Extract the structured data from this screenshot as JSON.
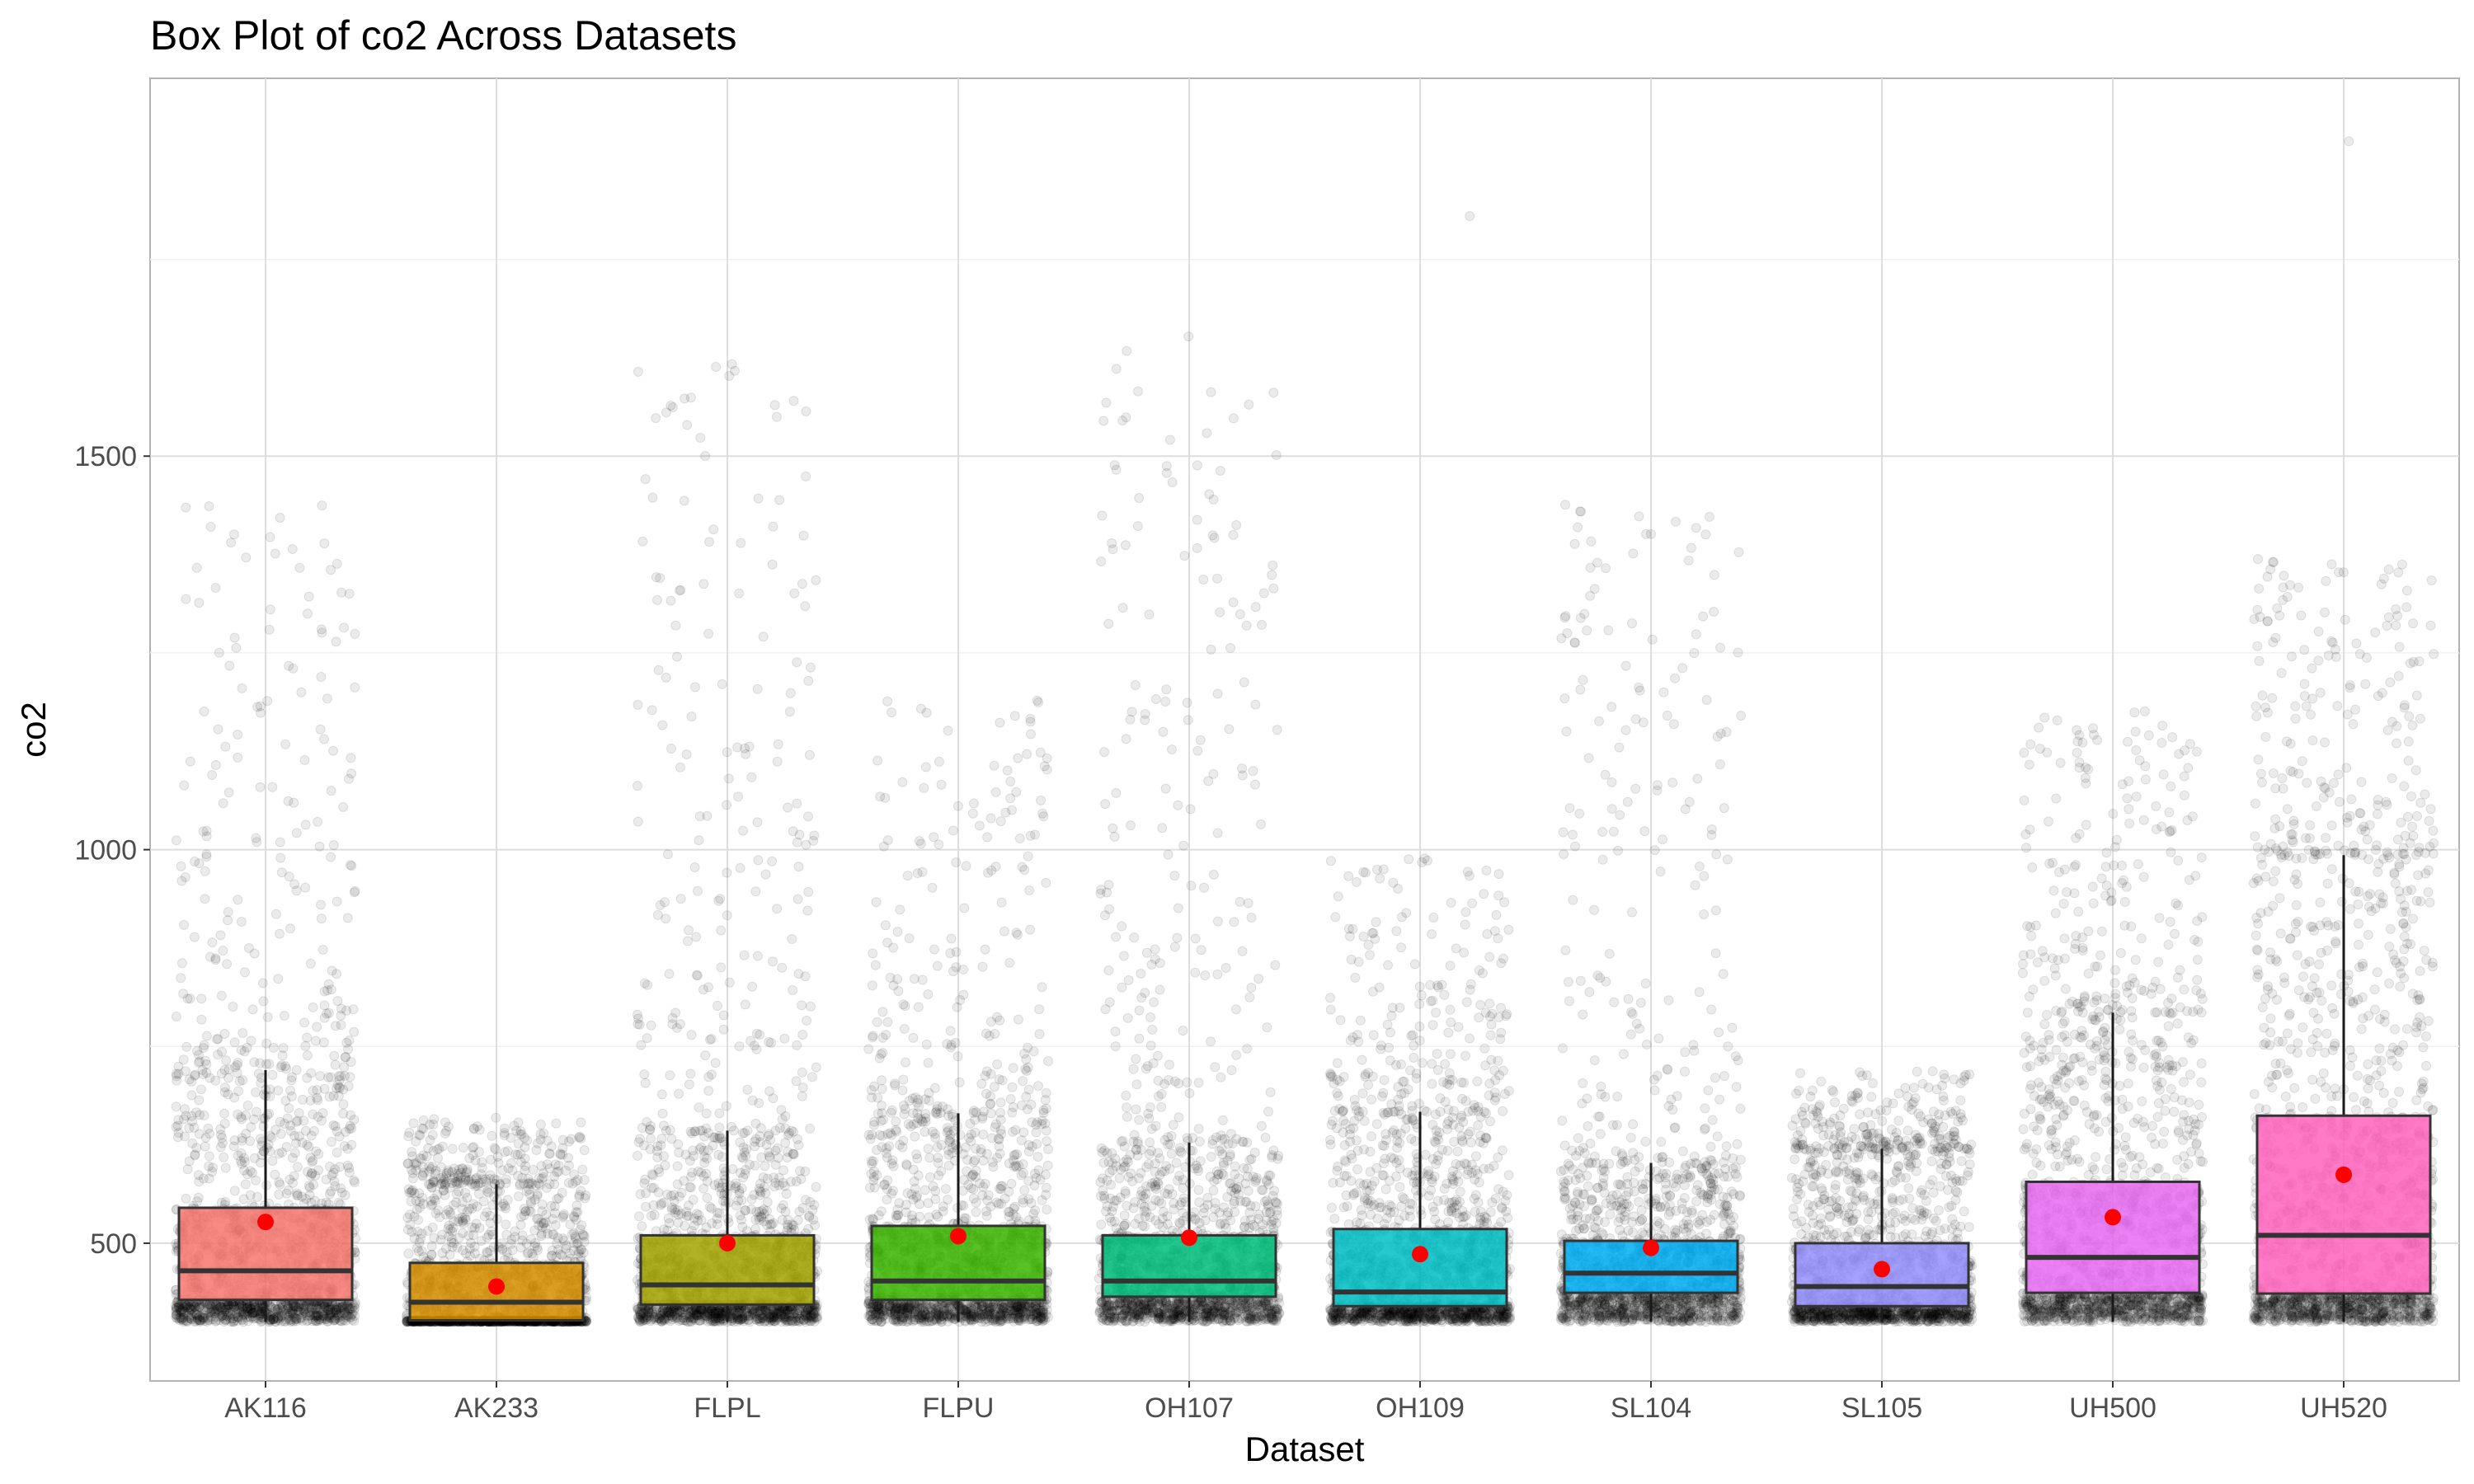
{
  "chart_data": {
    "type": "box",
    "title": "Box Plot of co2 Across Datasets",
    "xlabel": "Dataset",
    "ylabel": "co2",
    "ylim": [
      325,
      1980
    ],
    "yticks": [
      500,
      1000,
      1500
    ],
    "grid": true,
    "legend": "none",
    "categories": [
      "AK116",
      "AK233",
      "FLPL",
      "FLPU",
      "OH107",
      "OH109",
      "SL104",
      "SL105",
      "UH500",
      "UH520"
    ],
    "colors": [
      "#F8766D",
      "#D89000",
      "#A3A500",
      "#39B600",
      "#00BF7D",
      "#00BFC4",
      "#00B0F6",
      "#9590FF",
      "#E76BF3",
      "#FF62BC"
    ],
    "boxes": [
      {
        "name": "AK116",
        "q1": 428,
        "median": 465,
        "q3": 545,
        "whisker_low": 400,
        "whisker_high": 720,
        "mean": 527,
        "points_max": 1440,
        "outliers": []
      },
      {
        "name": "AK233",
        "q1": 402,
        "median": 425,
        "q3": 475,
        "whisker_low": 400,
        "whisker_high": 575,
        "mean": 445,
        "points_max": 660,
        "outliers": []
      },
      {
        "name": "FLPL",
        "q1": 422,
        "median": 447,
        "q3": 510,
        "whisker_low": 400,
        "whisker_high": 643,
        "mean": 500,
        "points_max": 1620,
        "outliers": []
      },
      {
        "name": "FLPU",
        "q1": 428,
        "median": 452,
        "q3": 522,
        "whisker_low": 400,
        "whisker_high": 665,
        "mean": 509,
        "points_max": 1190,
        "outliers": []
      },
      {
        "name": "OH107",
        "q1": 432,
        "median": 452,
        "q3": 510,
        "whisker_low": 400,
        "whisker_high": 628,
        "mean": 507,
        "points_max": 1660,
        "outliers": []
      },
      {
        "name": "OH109",
        "q1": 420,
        "median": 438,
        "q3": 518,
        "whisker_low": 400,
        "whisker_high": 667,
        "mean": 486,
        "points_max": 990,
        "outliers": [
          1805
        ]
      },
      {
        "name": "SL104",
        "q1": 437,
        "median": 462,
        "q3": 503,
        "whisker_low": 400,
        "whisker_high": 602,
        "mean": 494,
        "points_max": 1440,
        "outliers": []
      },
      {
        "name": "SL105",
        "q1": 420,
        "median": 445,
        "q3": 500,
        "whisker_low": 400,
        "whisker_high": 620,
        "mean": 467,
        "points_max": 720,
        "outliers": []
      },
      {
        "name": "UH500",
        "q1": 437,
        "median": 482,
        "q3": 578,
        "whisker_low": 400,
        "whisker_high": 793,
        "mean": 533,
        "points_max": 1180,
        "outliers": []
      },
      {
        "name": "UH520",
        "q1": 436,
        "median": 510,
        "q3": 662,
        "whisker_low": 400,
        "whisker_high": 993,
        "mean": 587,
        "points_max": 1370,
        "outliers": [
          1900
        ]
      }
    ]
  }
}
